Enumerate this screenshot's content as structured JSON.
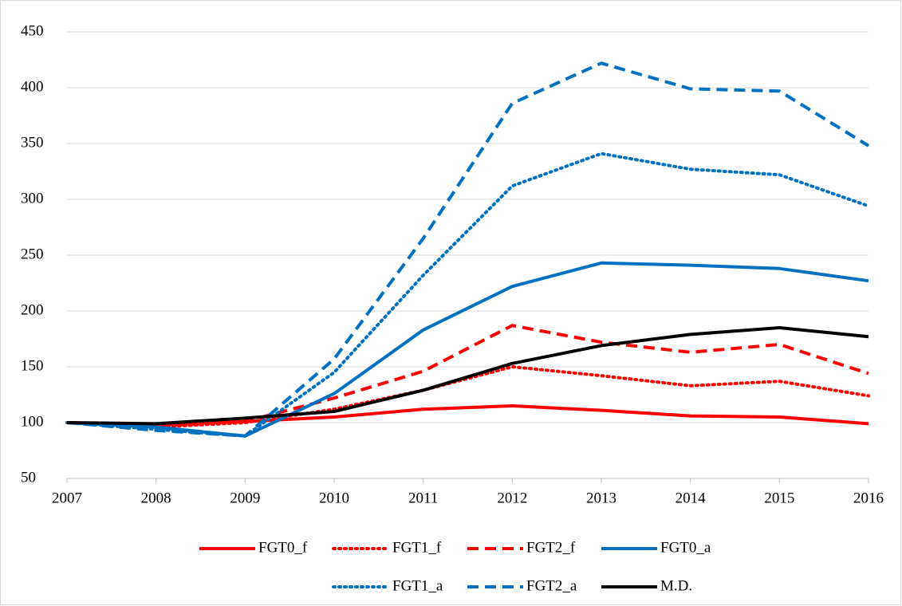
{
  "chart_data": {
    "type": "line",
    "x": [
      2007,
      2008,
      2009,
      2010,
      2011,
      2012,
      2013,
      2014,
      2015,
      2016
    ],
    "xlim": [
      2007,
      2016
    ],
    "xticks": [
      2007,
      2008,
      2009,
      2010,
      2011,
      2012,
      2013,
      2014,
      2015,
      2016
    ],
    "ylim": [
      50,
      450
    ],
    "yticks": [
      50,
      100,
      150,
      200,
      250,
      300,
      350,
      400,
      450
    ],
    "grid": true,
    "legend": "bottom",
    "series": [
      {
        "name": "FGT0_f",
        "color": "#ff0000",
        "dash": "solid",
        "values": [
          100,
          98,
          101,
          105,
          112,
          115,
          111,
          106,
          105,
          99
        ]
      },
      {
        "name": "FGT1_f",
        "color": "#ff0000",
        "dash": "dotted",
        "values": [
          100,
          96,
          100,
          112,
          129,
          150,
          142,
          133,
          137,
          124
        ]
      },
      {
        "name": "FGT2_f",
        "color": "#ff0000",
        "dash": "dashed",
        "values": [
          100,
          97,
          101,
          122,
          146,
          187,
          172,
          163,
          170,
          144
        ]
      },
      {
        "name": "FGT0_a",
        "color": "#0070c0",
        "dash": "solid",
        "values": [
          100,
          96,
          88,
          126,
          183,
          222,
          243,
          241,
          238,
          227
        ]
      },
      {
        "name": "FGT1_a",
        "color": "#0070c0",
        "dash": "dotted",
        "values": [
          100,
          94,
          88,
          145,
          232,
          312,
          341,
          327,
          322,
          294
        ]
      },
      {
        "name": "FGT2_a",
        "color": "#0070c0",
        "dash": "dashed",
        "values": [
          100,
          93,
          88,
          157,
          265,
          386,
          422,
          399,
          397,
          348
        ]
      },
      {
        "name": "M.D.",
        "color": "#000000",
        "dash": "solid",
        "values": [
          100,
          99,
          104,
          110,
          129,
          153,
          169,
          179,
          185,
          177
        ]
      }
    ]
  }
}
